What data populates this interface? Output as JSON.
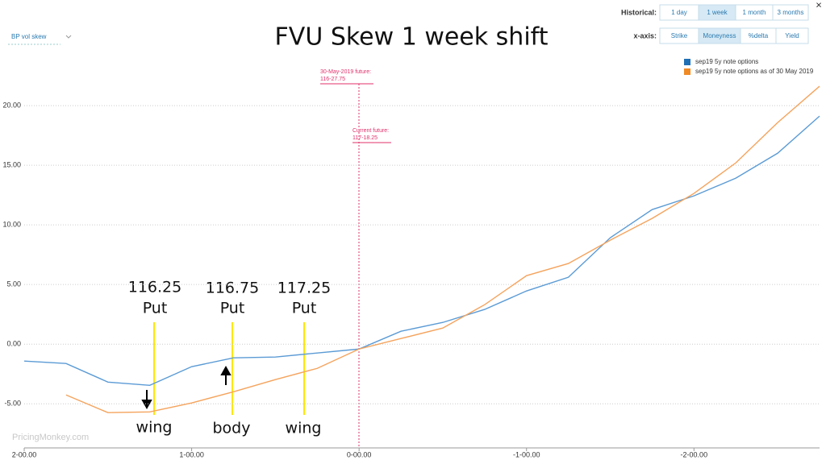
{
  "chart_data": {
    "type": "line",
    "title": "FVU Skew 1 week shift",
    "x": [
      2,
      1.75,
      1.5,
      1.25,
      1,
      0.75,
      0.5,
      0.25,
      0,
      -0.25,
      -0.5,
      -0.75,
      -1,
      -1.25,
      -1.5,
      -1.75,
      -2,
      -2.25,
      -2.5,
      -2.75
    ],
    "xlim": [
      2,
      -2.75
    ],
    "xticks": [
      {
        "value": 2,
        "label": "2-00.00"
      },
      {
        "value": 1,
        "label": "1-00.00"
      },
      {
        "value": 0,
        "label": "0-00.00"
      },
      {
        "value": -1,
        "label": "-1-00.00"
      },
      {
        "value": -2,
        "label": "-2-00.00"
      }
    ],
    "ylim": [
      -8.7,
      24.8
    ],
    "yticks": [
      {
        "value": -5,
        "label": "-5.00"
      },
      {
        "value": 0,
        "label": "0.00"
      },
      {
        "value": 5,
        "label": "5.00"
      },
      {
        "value": 10,
        "label": "10.00"
      },
      {
        "value": 15,
        "label": "15.00"
      },
      {
        "value": 20,
        "label": "20.00"
      }
    ],
    "grid": true,
    "series": [
      {
        "name": "sep19 5y note options",
        "color": "#5b9bd5",
        "legend_color": "#1f6fb5",
        "values": [
          -1.42,
          -1.62,
          -3.18,
          -3.45,
          -1.89,
          -1.15,
          -1.08,
          -0.74,
          -0.41,
          1.08,
          1.82,
          2.91,
          4.46,
          5.61,
          8.92,
          11.28,
          12.43,
          13.92,
          16.01,
          19.12
        ]
      },
      {
        "name": "sep19 5y note options as of 30 May 2019",
        "color": "#f5a35c",
        "legend_color": "#f08a24",
        "values": [
          null,
          -4.26,
          -5.74,
          -5.68,
          -4.93,
          -3.99,
          -2.97,
          -2.03,
          -0.41,
          0.47,
          1.35,
          3.31,
          5.74,
          6.76,
          8.72,
          10.54,
          12.64,
          15.2,
          18.58,
          21.62
        ]
      }
    ],
    "strike_labels": [
      {
        "strike": "116.25",
        "type": "Put",
        "zone": "wing"
      },
      {
        "strike": "116.75",
        "type": "Put",
        "zone": "body"
      },
      {
        "strike": "117.25",
        "type": "Put",
        "zone": "wing"
      }
    ],
    "futures": [
      {
        "label": "30-May-2019 future:",
        "price": "116-27.75"
      },
      {
        "label": "Current future:",
        "price": "117-18.25"
      }
    ],
    "watermark": "PricingMonkey.com"
  },
  "ui": {
    "dropdown": "BP vol skew",
    "close": "×",
    "historical": {
      "label": "Historical:",
      "options": [
        "1 day",
        "1 week",
        "1 month",
        "3 months"
      ],
      "selected": 1
    },
    "xaxis": {
      "label": "x-axis:",
      "options": [
        "Strike",
        "Moneyness",
        "%delta",
        "Yield"
      ],
      "selected": 1
    }
  }
}
